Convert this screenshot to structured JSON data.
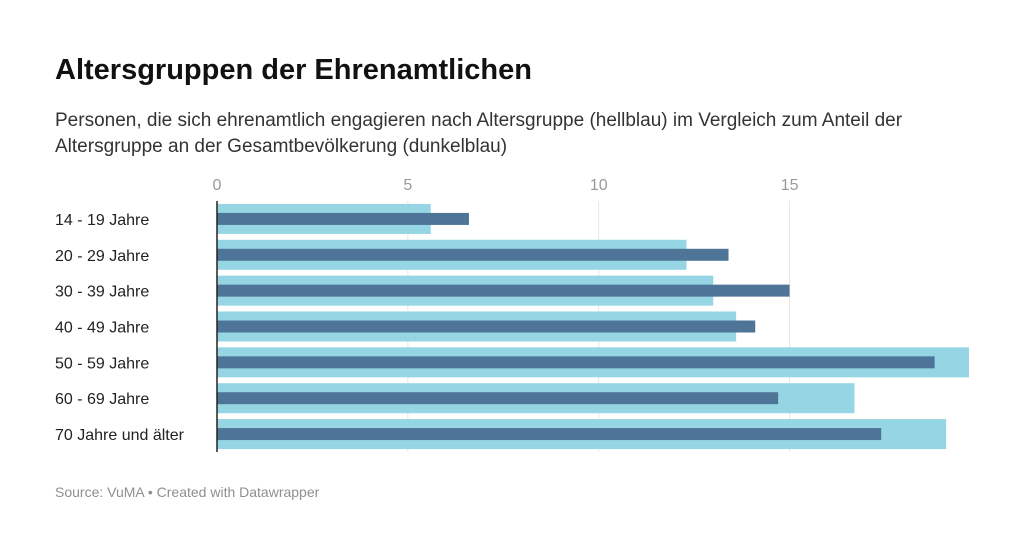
{
  "chart_data": {
    "type": "bar",
    "orientation": "horizontal",
    "title": "Altersgruppen der Ehrenamtlichen",
    "subtitle": "Personen, die sich ehrenamtlich engagieren nach Altersgruppe (hellblau) im Vergleich zum Anteil der Altersgruppe an der Gesamtbevölkerung (dunkelblau)",
    "categories": [
      "14 - 19 Jahre",
      "20 - 29 Jahre",
      "30 - 39 Jahre",
      "40 - 49 Jahre",
      "50 - 59 Jahre",
      "60 - 69 Jahre",
      "70 Jahre und älter"
    ],
    "series": [
      {
        "color": "#96d6e4",
        "values": [
          5.6,
          12.3,
          13.0,
          13.6,
          19.7,
          16.7,
          19.1
        ]
      },
      {
        "color": "#4e7597",
        "values": [
          6.6,
          13.4,
          15.0,
          14.1,
          18.8,
          14.7,
          17.4
        ]
      }
    ],
    "xlim": [
      0,
      19.7
    ],
    "ticks": [
      0,
      5,
      10,
      15
    ],
    "tick_labels": [
      "0",
      "5",
      "10",
      "15"
    ],
    "xlabel": "",
    "ylabel": "",
    "grid": true,
    "axis_color": "#222222",
    "grid_color": "#e6e6e6",
    "source": "Source: VuMA • Created with Datawrapper"
  }
}
